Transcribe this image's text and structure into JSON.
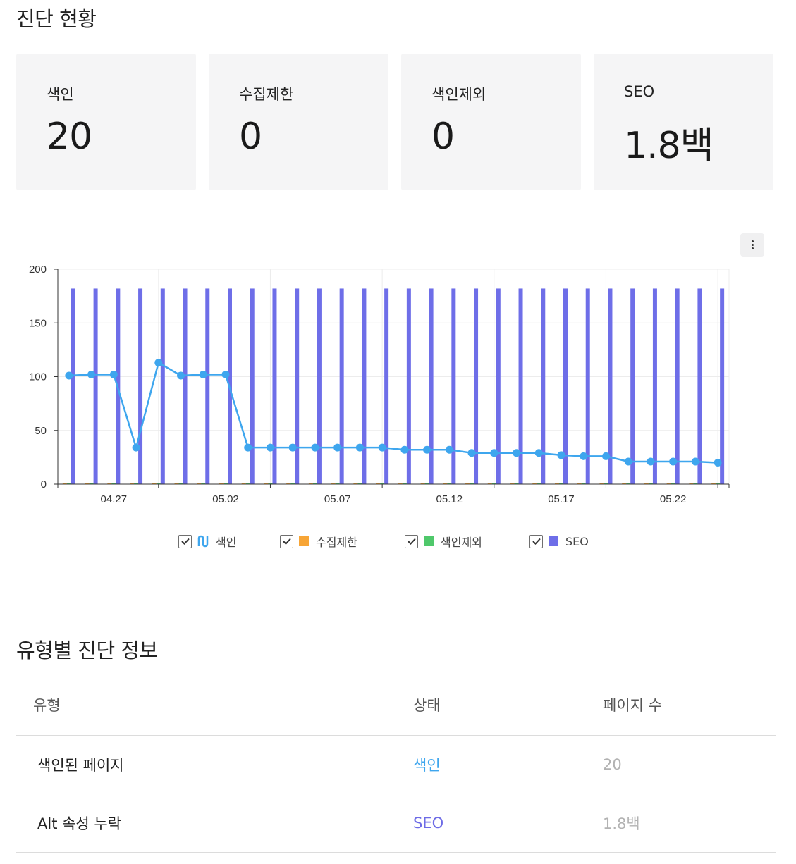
{
  "page": {
    "title_status": "진단 현황",
    "title_info": "유형별 진단 정보"
  },
  "cards": [
    {
      "label": "색인",
      "value": "20"
    },
    {
      "label": "수집제한",
      "value": "0"
    },
    {
      "label": "색인제외",
      "value": "0"
    },
    {
      "label": "SEO",
      "value": "1.8백"
    }
  ],
  "colors": {
    "index_line": "#3ea6ee",
    "restricted": "#f7a536",
    "excluded": "#4fc86b",
    "seo": "#6e6ee8"
  },
  "chart_data": {
    "type": "bar",
    "x_tick_labels": [
      "04.27",
      "05.02",
      "05.07",
      "05.12",
      "05.17",
      "05.22"
    ],
    "x_tick_start_index": 2,
    "x_tick_every": 5,
    "y_ticks": [
      0,
      50,
      100,
      150,
      200
    ],
    "ylim": [
      0,
      200
    ],
    "series": [
      {
        "name": "색인",
        "kind": "line",
        "color": "#3ea6ee",
        "values": [
          101,
          102,
          102,
          34,
          113,
          101,
          102,
          102,
          34,
          34,
          34,
          34,
          34,
          34,
          34,
          32,
          32,
          32,
          29,
          29,
          29,
          29,
          27,
          26,
          26,
          21,
          21,
          21,
          21,
          20
        ]
      },
      {
        "name": "수집제한",
        "kind": "bar",
        "color": "#f7a536",
        "values": [
          0,
          0,
          0,
          0,
          0,
          0,
          0,
          0,
          0,
          0,
          0,
          0,
          0,
          0,
          0,
          0,
          0,
          0,
          0,
          0,
          0,
          0,
          0,
          0,
          0,
          0,
          0,
          0,
          0,
          0
        ]
      },
      {
        "name": "색인제외",
        "kind": "bar",
        "color": "#4fc86b",
        "values": [
          0,
          0,
          0,
          0,
          0,
          0,
          0,
          0,
          0,
          0,
          0,
          0,
          0,
          0,
          0,
          0,
          0,
          0,
          0,
          0,
          0,
          0,
          0,
          0,
          0,
          0,
          0,
          0,
          0,
          0
        ]
      },
      {
        "name": "SEO",
        "kind": "bar",
        "color": "#6e6ee8",
        "values": [
          182,
          182,
          182,
          182,
          182,
          182,
          182,
          182,
          182,
          182,
          182,
          182,
          182,
          182,
          182,
          182,
          182,
          182,
          182,
          182,
          182,
          182,
          182,
          182,
          182,
          182,
          182,
          182,
          182,
          182
        ]
      }
    ],
    "legend_position": "bottom-center",
    "grid": true
  },
  "table": {
    "headers": {
      "type": "유형",
      "status": "상태",
      "pages": "페이지 수"
    },
    "rows": [
      {
        "type": "색인된 페이지",
        "status": "색인",
        "pages": "20"
      },
      {
        "type": "Alt 속성 누락",
        "status": "SEO",
        "pages": "1.8백"
      }
    ]
  }
}
